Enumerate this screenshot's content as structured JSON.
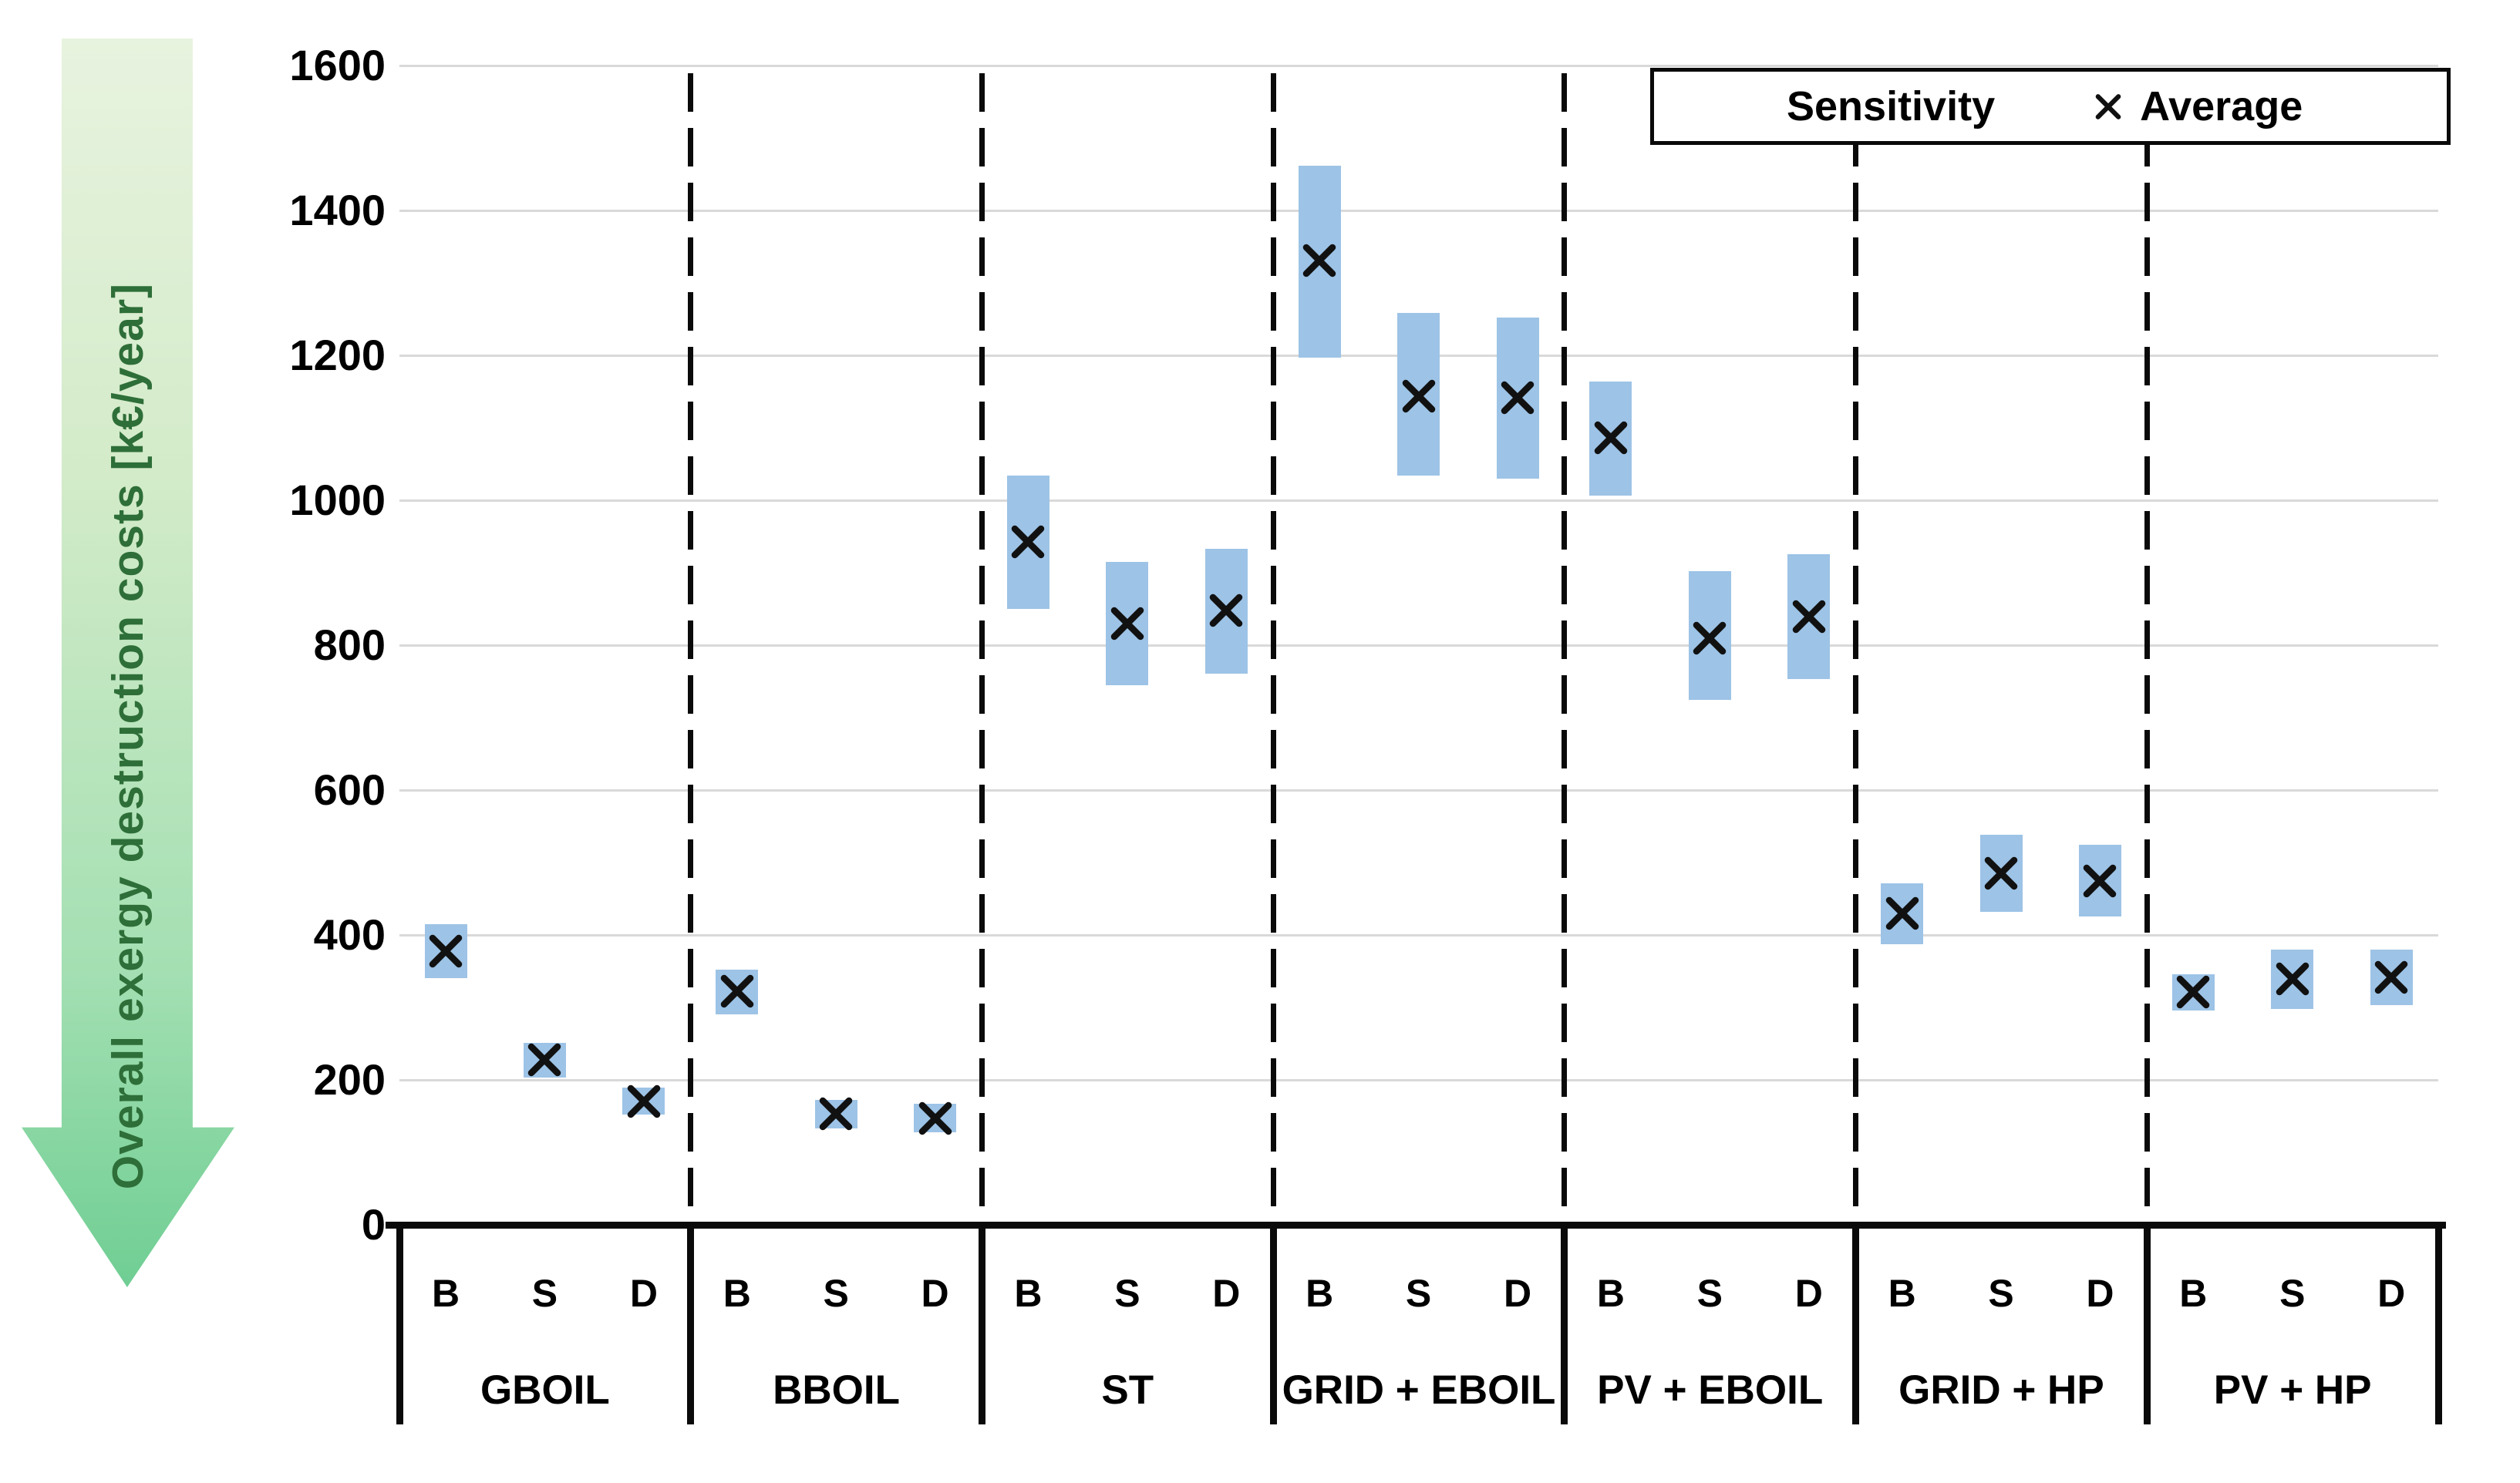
{
  "y_axis": {
    "label": "Overall exergy destruction costs [k€/year]",
    "ticks": [
      0,
      200,
      400,
      600,
      800,
      1000,
      1200,
      1400,
      1600
    ]
  },
  "legend": {
    "sensitivity_label": "Sensitivity",
    "average_label": "Average"
  },
  "colors": {
    "sensitivity_bar": "#9DC3E6",
    "average_marker": "#111111",
    "gridline": "#D9D9D9",
    "axis": "#0A0A0A",
    "arrow_top": "#E8F3DF",
    "arrow_bottom": "#6FCE93",
    "arrow_text": "#2E6E38"
  },
  "chart_data": {
    "type": "bar",
    "subtype": "floating-range-bars-with-average-markers",
    "title": "",
    "xlabel": "",
    "ylabel": "Overall exergy destruction costs [k€/year]",
    "ylim": [
      0,
      1600
    ],
    "y_tick_step": 200,
    "grid": true,
    "legend_position": "top-right",
    "legend_entries": [
      "Sensitivity",
      "Average"
    ],
    "categories": [
      "GBOIL",
      "BBOIL",
      "ST",
      "GRID + EBOIL",
      "PV + EBOIL",
      "GRID + HP",
      "PV + HP"
    ],
    "sub_categories": [
      "B",
      "S",
      "D"
    ],
    "units": "k€/year",
    "groups": [
      {
        "label": "GBOIL",
        "points": [
          {
            "sub": "B",
            "min": 340,
            "avg": 378,
            "max": 415
          },
          {
            "sub": "S",
            "min": 203,
            "avg": 228,
            "max": 251
          },
          {
            "sub": "D",
            "min": 152,
            "avg": 170,
            "max": 189
          }
        ]
      },
      {
        "label": "BBOIL",
        "points": [
          {
            "sub": "B",
            "min": 290,
            "avg": 322,
            "max": 352
          },
          {
            "sub": "S",
            "min": 133,
            "avg": 153,
            "max": 172
          },
          {
            "sub": "D",
            "min": 128,
            "avg": 147,
            "max": 167
          }
        ]
      },
      {
        "label": "ST",
        "points": [
          {
            "sub": "B",
            "min": 850,
            "avg": 943,
            "max": 1034
          },
          {
            "sub": "S",
            "min": 745,
            "avg": 830,
            "max": 915
          },
          {
            "sub": "D",
            "min": 761,
            "avg": 848,
            "max": 933
          }
        ]
      },
      {
        "label": "GRID + EBOIL",
        "points": [
          {
            "sub": "B",
            "min": 1197,
            "avg": 1331,
            "max": 1462
          },
          {
            "sub": "S",
            "min": 1034,
            "avg": 1144,
            "max": 1258
          },
          {
            "sub": "D",
            "min": 1030,
            "avg": 1142,
            "max": 1252
          }
        ]
      },
      {
        "label": "PV + EBOIL",
        "points": [
          {
            "sub": "B",
            "min": 1006,
            "avg": 1086,
            "max": 1164
          },
          {
            "sub": "S",
            "min": 724,
            "avg": 810,
            "max": 902
          },
          {
            "sub": "D",
            "min": 753,
            "avg": 839,
            "max": 926
          }
        ]
      },
      {
        "label": "GRID + HP",
        "points": [
          {
            "sub": "B",
            "min": 387,
            "avg": 430,
            "max": 471
          },
          {
            "sub": "S",
            "min": 432,
            "avg": 485,
            "max": 538
          },
          {
            "sub": "D",
            "min": 426,
            "avg": 475,
            "max": 525
          }
        ]
      },
      {
        "label": "PV + HP",
        "points": [
          {
            "sub": "B",
            "min": 296,
            "avg": 321,
            "max": 346
          },
          {
            "sub": "S",
            "min": 298,
            "avg": 339,
            "max": 380
          },
          {
            "sub": "D",
            "min": 303,
            "avg": 341,
            "max": 380
          }
        ]
      }
    ]
  }
}
